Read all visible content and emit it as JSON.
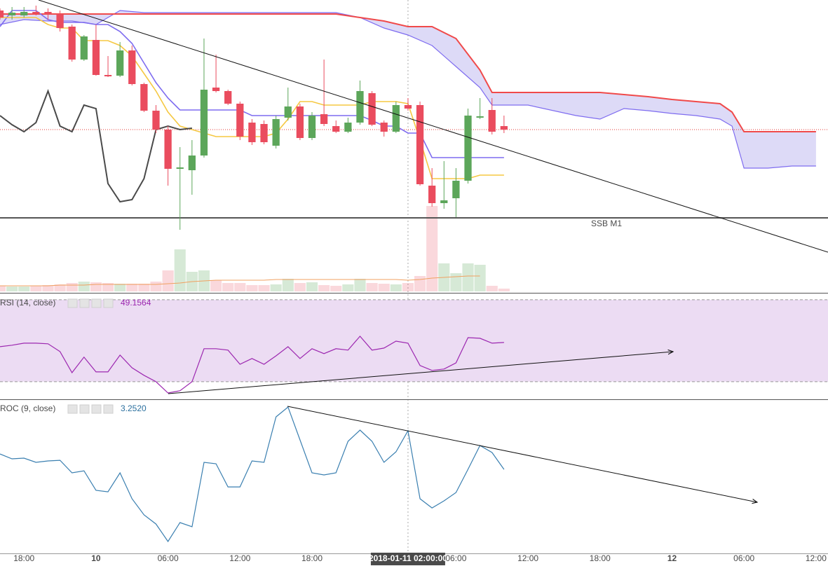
{
  "x_axis": {
    "xlim": [
      -8,
      61
    ],
    "crosshair": 26,
    "xticks": [
      {
        "value": -6,
        "label": "18:00"
      },
      {
        "value": 0,
        "label": "10"
      },
      {
        "value": 6,
        "label": "06:00"
      },
      {
        "value": 12,
        "label": "12:00"
      },
      {
        "value": 18,
        "label": "18:00"
      },
      {
        "value": 26,
        "label": "2018-01-11 02:00:00"
      },
      {
        "value": 30,
        "label": "06:00"
      },
      {
        "value": 36,
        "label": "12:00"
      },
      {
        "value": 42,
        "label": "18:00"
      },
      {
        "value": 48,
        "label": "12"
      },
      {
        "value": 54,
        "label": "06:00"
      },
      {
        "value": 60,
        "label": "12:00"
      }
    ]
  },
  "chart_data": [
    {
      "type": "candlestick",
      "ylim": [
        0,
        418
      ],
      "up_color": "#5ca65a",
      "down_color": "#ea4c5e",
      "last_price_color": "#e53935",
      "x": [
        -8,
        -7,
        -6,
        -5,
        -4,
        -3,
        -2,
        -1,
        0,
        1,
        2,
        3,
        4,
        5,
        6,
        7,
        8,
        9,
        10,
        11,
        12,
        13,
        14,
        15,
        16,
        17,
        18,
        19,
        20,
        21,
        22,
        23,
        24,
        25,
        26,
        27,
        28,
        29,
        30,
        31,
        32,
        33,
        34
      ],
      "open": [
        403,
        396,
        396,
        401,
        401,
        398,
        380,
        333,
        361,
        311,
        310,
        346,
        298,
        260,
        233,
        177,
        175,
        196,
        293,
        288,
        270,
        243,
        241,
        210,
        250,
        266,
        221,
        255,
        238,
        230,
        243,
        285,
        243,
        230,
        268,
        268,
        153,
        128,
        135,
        160,
        250,
        261,
        238
      ],
      "high": [
        406,
        408,
        408,
        410,
        406,
        403,
        383,
        368,
        383,
        338,
        358,
        353,
        300,
        268,
        238,
        208,
        218,
        363,
        340,
        290,
        273,
        248,
        246,
        253,
        293,
        270,
        258,
        333,
        246,
        250,
        303,
        288,
        246,
        273,
        278,
        273,
        178,
        188,
        178,
        263,
        278,
        278,
        253
      ],
      "low": [
        390,
        390,
        393,
        396,
        390,
        373,
        330,
        331,
        310,
        308,
        308,
        296,
        258,
        228,
        153,
        90,
        140,
        193,
        286,
        268,
        218,
        211,
        212,
        206,
        246,
        218,
        218,
        238,
        228,
        228,
        240,
        238,
        223,
        228,
        260,
        153,
        123,
        120,
        108,
        156,
        248,
        226,
        228
      ],
      "close": [
        393,
        400,
        401,
        399,
        398,
        378,
        333,
        366,
        311,
        309,
        346,
        298,
        260,
        233,
        177,
        179,
        196,
        290,
        288,
        270,
        223,
        215,
        215,
        248,
        266,
        221,
        253,
        241,
        230,
        243,
        288,
        240,
        230,
        268,
        263,
        155,
        128,
        132,
        160,
        253,
        252,
        230,
        233
      ],
      "lines": [
        {
          "color": "#7e6cf0",
          "values": [
            380,
            403,
            403,
            403,
            390,
            386,
            386,
            386,
            383,
            383,
            373,
            356,
            328,
            300,
            278,
            261,
            261,
            261,
            261,
            261,
            261,
            253,
            253,
            253,
            253,
            253,
            253,
            253,
            253,
            253,
            253,
            246,
            238,
            238,
            228,
            228,
            193,
            193,
            193,
            193,
            193,
            193,
            193
          ]
        },
        {
          "color": "#f5c842",
          "values": [
            393,
            393,
            393,
            393,
            383,
            378,
            378,
            360,
            360,
            360,
            353,
            338,
            313,
            288,
            258,
            238,
            233,
            228,
            223,
            223,
            223,
            223,
            223,
            228,
            248,
            273,
            273,
            268,
            268,
            268,
            268,
            273,
            273,
            273,
            270,
            218,
            163,
            163,
            163,
            163,
            168,
            168,
            168
          ]
        },
        {
          "color": "#4a4a4a",
          "x": [
            -8,
            -7,
            -6,
            -5,
            -4,
            -3,
            -2,
            -1,
            0,
            1,
            2,
            3,
            4,
            5,
            6,
            7,
            8
          ],
          "values": [
            253,
            240,
            230,
            243,
            288,
            238,
            230,
            268,
            263,
            156,
            130,
            133,
            163,
            233,
            238,
            233,
            235
          ]
        }
      ],
      "cloud": {
        "fill": "#d9d6f6",
        "x": [
          -8,
          -6,
          -4,
          -2,
          0,
          2,
          4,
          6,
          10,
          14,
          18,
          20,
          22,
          24,
          26,
          28,
          30,
          32,
          33,
          34,
          36,
          40,
          42,
          44,
          46,
          48,
          50,
          52,
          53,
          54,
          56,
          58,
          60
        ],
        "span_a": {
          "color": "#f04a4a",
          "values": [
            398,
            398,
            398,
            398,
            398,
            398,
            398,
            398,
            398,
            398,
            398,
            398,
            393,
            388,
            380,
            380,
            363,
            318,
            286,
            286,
            286,
            286,
            286,
            283,
            280,
            276,
            273,
            270,
            258,
            230,
            230,
            230,
            230
          ]
        },
        "span_b": {
          "color": "#7e6cf0",
          "values": [
            383,
            390,
            388,
            388,
            383,
            403,
            400,
            400,
            400,
            400,
            400,
            400,
            393,
            378,
            368,
            353,
            323,
            293,
            268,
            268,
            268,
            253,
            248,
            263,
            260,
            256,
            253,
            248,
            238,
            178,
            178,
            181,
            181
          ]
        }
      },
      "hlines": [
        {
          "value": 107,
          "label": "SSB M1",
          "color": "#555555"
        }
      ]
    },
    {
      "type": "bar",
      "ylim": [
        -2,
        416
      ],
      "x": [
        -8,
        -7,
        -6,
        -5,
        -4,
        -3,
        -2,
        -1,
        0,
        1,
        2,
        3,
        4,
        5,
        6,
        7,
        8,
        9,
        10,
        11,
        12,
        13,
        14,
        15,
        16,
        17,
        18,
        19,
        20,
        21,
        22,
        23,
        24,
        25,
        26,
        27,
        28,
        29,
        30,
        31,
        32,
        33,
        34
      ],
      "values": [
        8,
        7,
        7,
        8,
        9,
        10,
        12,
        14,
        13,
        12,
        11,
        11,
        11,
        14,
        30,
        60,
        28,
        30,
        16,
        12,
        12,
        9,
        9,
        10,
        18,
        12,
        13,
        9,
        8,
        10,
        18,
        12,
        11,
        10,
        12,
        22,
        122,
        40,
        26,
        40,
        38,
        8,
        4
      ],
      "ma": {
        "color": "#f0a060",
        "values": [
          8,
          8,
          8,
          8,
          8,
          9,
          9,
          9,
          10,
          10,
          10,
          10,
          10,
          10,
          11,
          12,
          14,
          15,
          16,
          16,
          16,
          16,
          16,
          17,
          17,
          17,
          17,
          17,
          17,
          17,
          17,
          17,
          17,
          17,
          16,
          17,
          19,
          20,
          21,
          22,
          22,
          null,
          null
        ]
      }
    },
    {
      "type": "line",
      "title": "RSI (14, close)",
      "ylim": [
        22.1,
        72.7
      ],
      "color": "#9c27b0",
      "band": [
        30,
        70
      ],
      "band_color": "#ecdcf3",
      "x": [
        -8,
        -7,
        -6,
        -5,
        -4,
        -3,
        -2,
        -1,
        0,
        1,
        2,
        3,
        4,
        5,
        6,
        7,
        8,
        9,
        10,
        11,
        12,
        13,
        14,
        15,
        16,
        17,
        18,
        19,
        20,
        21,
        22,
        23,
        24,
        25,
        26,
        27,
        28,
        29,
        30,
        31,
        32,
        33,
        34
      ],
      "values": [
        47.1,
        47.8,
        48.8,
        48.8,
        48.5,
        44.7,
        34.4,
        42.0,
        34.8,
        34.8,
        43.0,
        36.8,
        33.1,
        30.0,
        24.5,
        25.6,
        30.0,
        46.1,
        46.1,
        45.4,
        38.5,
        41.3,
        38.5,
        42.6,
        47.1,
        41.3,
        46.1,
        43.7,
        46.1,
        45.4,
        52.2,
        45.4,
        46.4,
        49.8,
        48.8,
        37.9,
        35.5,
        36.2,
        39.2,
        51.5,
        51.2,
        48.8,
        49.1564
      ]
    },
    {
      "type": "line",
      "title": "ROC (9, close)",
      "ylim": [
        -9.78,
        13.7
      ],
      "color": "#3a7fb0",
      "x": [
        -8,
        -7,
        -6,
        -5,
        -4,
        -3,
        -2,
        -1,
        0,
        1,
        2,
        3,
        4,
        5,
        6,
        7,
        8,
        9,
        10,
        11,
        12,
        13,
        14,
        15,
        16,
        17,
        18,
        19,
        20,
        21,
        22,
        23,
        24,
        25,
        26,
        27,
        28,
        29,
        30,
        31,
        32,
        33,
        34
      ],
      "values": [
        5.65,
        4.89,
        5.0,
        4.35,
        4.57,
        4.67,
        2.72,
        3.04,
        0,
        -0.22,
        2.72,
        -1.3,
        -3.8,
        -5.22,
        -7.93,
        -5.0,
        -5.65,
        4.35,
        4.13,
        0.54,
        0.54,
        4.57,
        4.35,
        11.41,
        12.93,
        7.83,
        2.72,
        2.39,
        2.72,
        7.61,
        9.35,
        7.61,
        4.35,
        5.98,
        9.24,
        -1.3,
        -2.72,
        -1.63,
        -0.33,
        3.26,
        6.96,
        5.87,
        3.252
      ],
      "value_labels": [
        null,
        null,
        null,
        null,
        null,
        null,
        null,
        null,
        null,
        null,
        null,
        null,
        null,
        null,
        null,
        null,
        null,
        null,
        null,
        null,
        null,
        null,
        null,
        null,
        null,
        null,
        null,
        null,
        null,
        null,
        null,
        null,
        null,
        null,
        null,
        null,
        null,
        null,
        null,
        null,
        null,
        null,
        "3.2520"
      ]
    }
  ]
}
